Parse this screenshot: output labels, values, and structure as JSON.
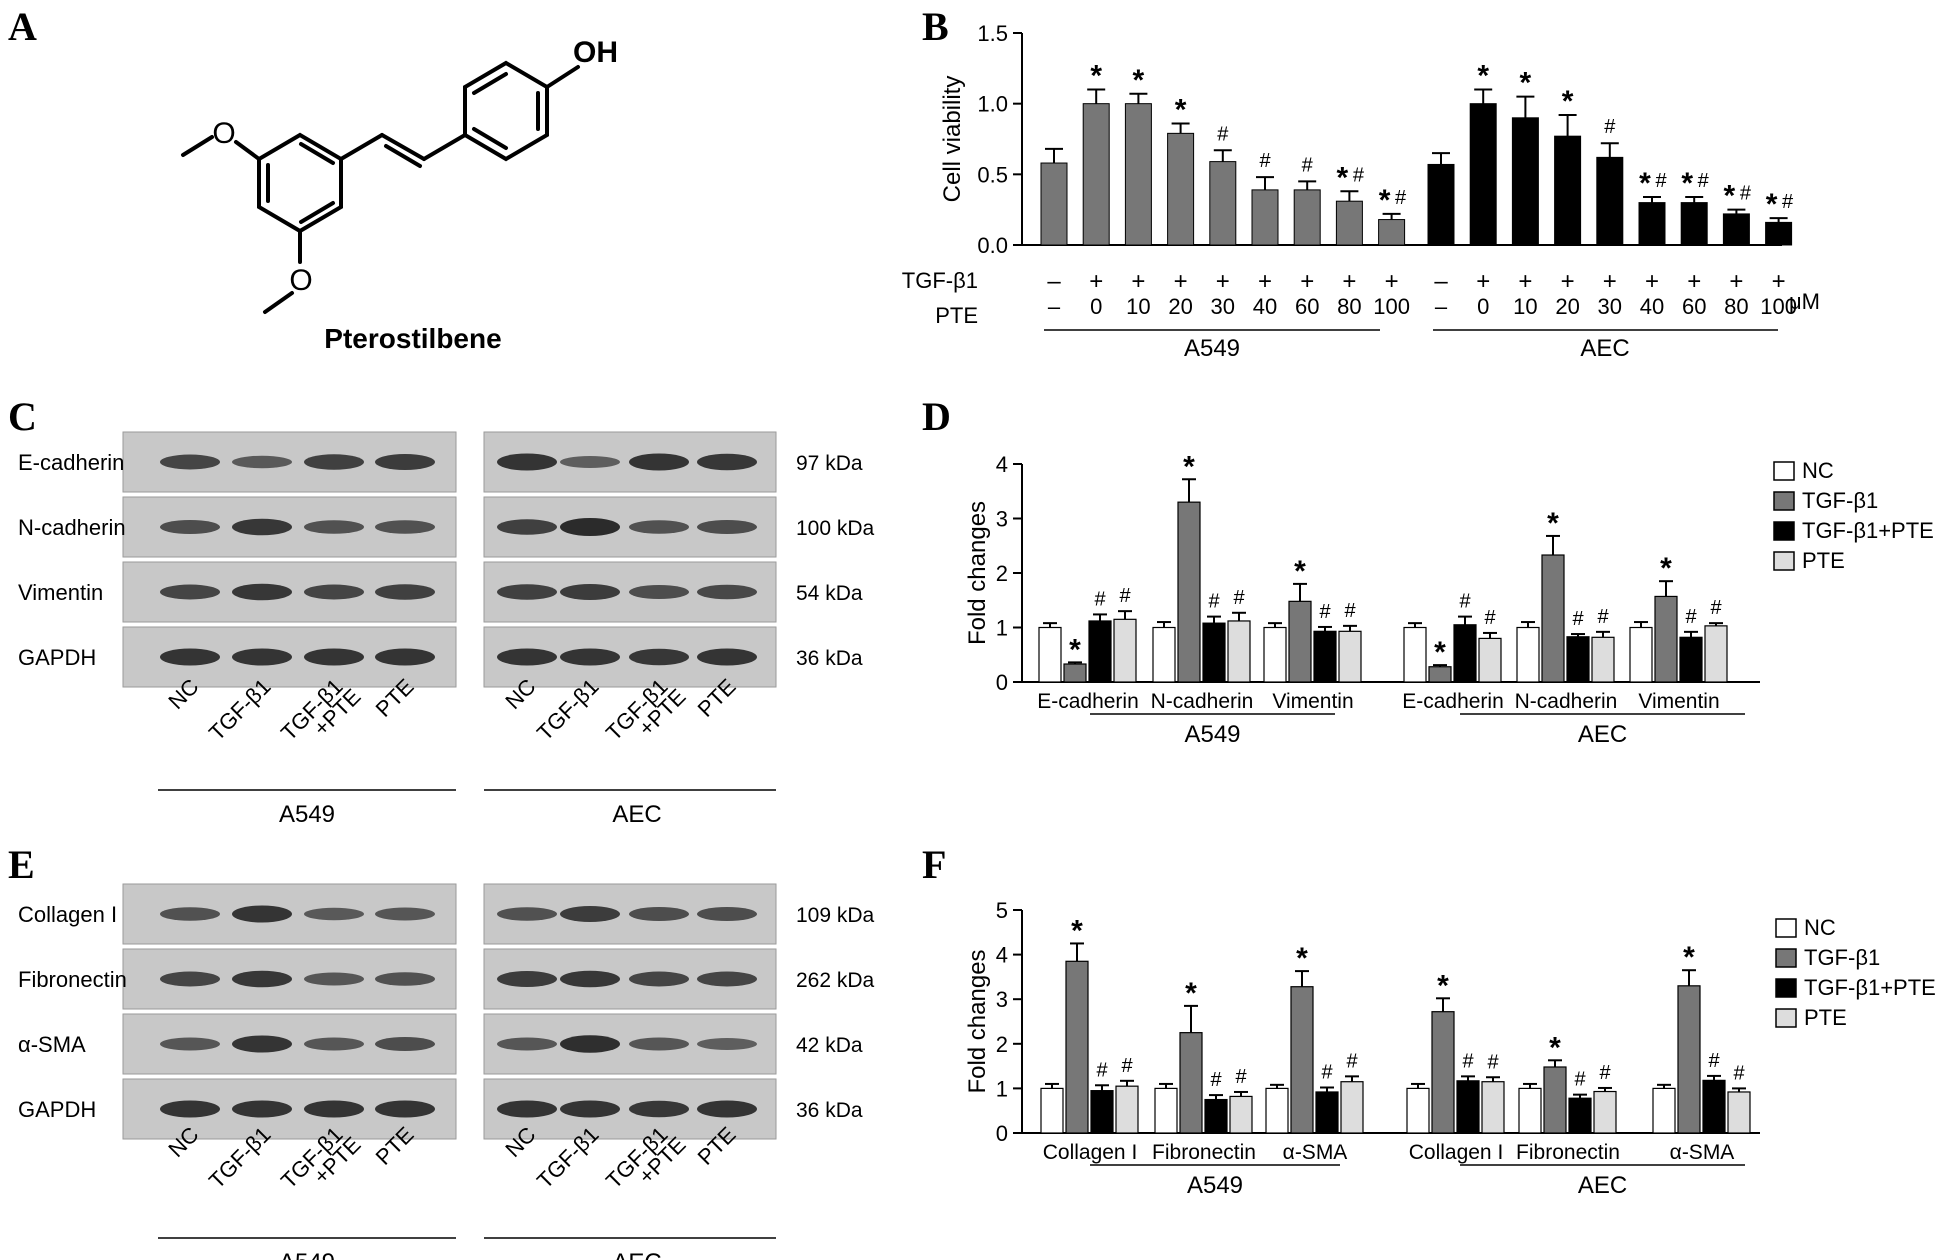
{
  "panel_labels": {
    "A": "A",
    "B": "B",
    "C": "C",
    "D": "D",
    "E": "E",
    "F": "F"
  },
  "panel_a": {
    "compound_name": "Pterostilbene",
    "structure_labels": {
      "oh": "OH",
      "o_top": "O",
      "o_bottom": "O"
    }
  },
  "panel_b": {
    "row_labels": {
      "tgf": "TGF-β1",
      "pte": "PTE"
    },
    "unit": "μM",
    "groups": [
      "A549",
      "AEC"
    ],
    "tgf_signs": [
      "–",
      "+",
      "+",
      "+",
      "+",
      "+",
      "+",
      "+",
      "+"
    ],
    "pte_values": [
      "–",
      "0",
      "10",
      "20",
      "30",
      "40",
      "60",
      "80",
      "100"
    ]
  },
  "blots": {
    "lanes": [
      "NC",
      "TGF-β1",
      "TGF-β1\n+PTE",
      "PTE"
    ],
    "groups": [
      "A549",
      "AEC"
    ],
    "panel_c": {
      "proteins": [
        "E-cadherin",
        "N-cadherin",
        "Vimentin",
        "GAPDH"
      ],
      "sizes": [
        "97 kDa",
        "100 kDa",
        "54 kDa",
        "36 kDa"
      ]
    },
    "panel_e": {
      "proteins": [
        "Collagen I",
        "Fibronectin",
        "α-SMA",
        "GAPDH"
      ],
      "sizes": [
        "109 kDa",
        "262 kDa",
        "42 kDa",
        "36 kDa"
      ]
    }
  },
  "chart_data": [
    {
      "type": "bar",
      "panel": "B",
      "ylabel": "Cell viability",
      "ylim": [
        0,
        1.5
      ],
      "yticks": [
        "0.0",
        "0.5",
        "1.0",
        "1.5"
      ],
      "groups": [
        {
          "name": "A549",
          "color": "#777777",
          "values": [
            0.58,
            1.0,
            1.0,
            0.79,
            0.59,
            0.39,
            0.39,
            0.31,
            0.18
          ],
          "errors": [
            0.1,
            0.1,
            0.07,
            0.07,
            0.08,
            0.09,
            0.06,
            0.07,
            0.04
          ],
          "marks": [
            "",
            "*",
            "*",
            "*",
            "#",
            "#",
            "#",
            "*#",
            "*#"
          ]
        },
        {
          "name": "AEC",
          "color": "#000000",
          "values": [
            0.57,
            1.0,
            0.9,
            0.77,
            0.62,
            0.3,
            0.3,
            0.22,
            0.16
          ],
          "errors": [
            0.08,
            0.1,
            0.15,
            0.15,
            0.1,
            0.04,
            0.04,
            0.03,
            0.03
          ],
          "marks": [
            "",
            "*",
            "*",
            "*",
            "#",
            "*#",
            "*#",
            "*#",
            "*#"
          ]
        }
      ]
    },
    {
      "type": "bar",
      "panel": "D",
      "ylabel": "Fold changes",
      "ylim": [
        0,
        4
      ],
      "yticks": [
        "0",
        "1",
        "2",
        "3",
        "4"
      ],
      "legend_position": "top-right",
      "series": [
        {
          "name": "NC",
          "color": "#ffffff"
        },
        {
          "name": "TGF-β1",
          "color": "#777777"
        },
        {
          "name": "TGF-β1+PTE",
          "color": "#000000"
        },
        {
          "name": "PTE",
          "color": "#dddddd"
        }
      ],
      "categories": [
        "E-cadherin",
        "N-cadherin",
        "Vimentin",
        "E-cadherin",
        "N-cadherin",
        "Vimentin"
      ],
      "groups": [
        "A549",
        "AEC"
      ],
      "values": [
        [
          1.0,
          0.33,
          1.12,
          1.15
        ],
        [
          1.0,
          3.3,
          1.08,
          1.12
        ],
        [
          1.0,
          1.48,
          0.93,
          0.93
        ],
        [
          1.0,
          0.28,
          1.05,
          0.8
        ],
        [
          1.0,
          2.33,
          0.83,
          0.82
        ],
        [
          1.0,
          1.57,
          0.82,
          1.03
        ]
      ],
      "errors": [
        [
          0.08,
          0.03,
          0.12,
          0.15
        ],
        [
          0.1,
          0.42,
          0.12,
          0.15
        ],
        [
          0.08,
          0.32,
          0.08,
          0.1
        ],
        [
          0.08,
          0.03,
          0.15,
          0.1
        ],
        [
          0.1,
          0.35,
          0.05,
          0.1
        ],
        [
          0.1,
          0.28,
          0.1,
          0.05
        ]
      ],
      "marks": [
        [
          "",
          "*",
          "#",
          "#"
        ],
        [
          "",
          "*",
          "#",
          "#"
        ],
        [
          "",
          "*",
          "#",
          "#"
        ],
        [
          "",
          "*",
          "#",
          "#"
        ],
        [
          "",
          "*",
          "#",
          "#"
        ],
        [
          "",
          "*",
          "#",
          "#"
        ]
      ]
    },
    {
      "type": "bar",
      "panel": "F",
      "ylabel": "Fold changes",
      "ylim": [
        0,
        5
      ],
      "yticks": [
        "0",
        "1",
        "2",
        "3",
        "4",
        "5"
      ],
      "legend_position": "top-right",
      "series": [
        {
          "name": "NC",
          "color": "#ffffff"
        },
        {
          "name": "TGF-β1",
          "color": "#777777"
        },
        {
          "name": "TGF-β1+PTE",
          "color": "#000000"
        },
        {
          "name": "PTE",
          "color": "#dddddd"
        }
      ],
      "categories": [
        "Collagen I",
        "Fibronectin",
        "α-SMA",
        "Collagen I",
        "Fibronectin",
        "α-SMA"
      ],
      "groups": [
        "A549",
        "AEC"
      ],
      "values": [
        [
          1.0,
          3.85,
          0.95,
          1.05
        ],
        [
          1.0,
          2.25,
          0.75,
          0.82
        ],
        [
          1.0,
          3.28,
          0.92,
          1.15
        ],
        [
          1.0,
          2.72,
          1.17,
          1.15
        ],
        [
          1.0,
          1.48,
          0.78,
          0.93
        ],
        [
          1.0,
          3.3,
          1.18,
          0.92
        ]
      ],
      "errors": [
        [
          0.1,
          0.4,
          0.12,
          0.12
        ],
        [
          0.1,
          0.6,
          0.1,
          0.1
        ],
        [
          0.08,
          0.35,
          0.1,
          0.12
        ],
        [
          0.1,
          0.3,
          0.1,
          0.1
        ],
        [
          0.1,
          0.15,
          0.08,
          0.08
        ],
        [
          0.08,
          0.35,
          0.1,
          0.08
        ]
      ],
      "marks": [
        [
          "",
          "*",
          "#",
          "#"
        ],
        [
          "",
          "*",
          "#",
          "#"
        ],
        [
          "",
          "*",
          "#",
          "#"
        ],
        [
          "",
          "*",
          "#",
          "#"
        ],
        [
          "",
          "*",
          "#",
          "#"
        ],
        [
          "",
          "*",
          "#",
          "#"
        ]
      ]
    }
  ]
}
